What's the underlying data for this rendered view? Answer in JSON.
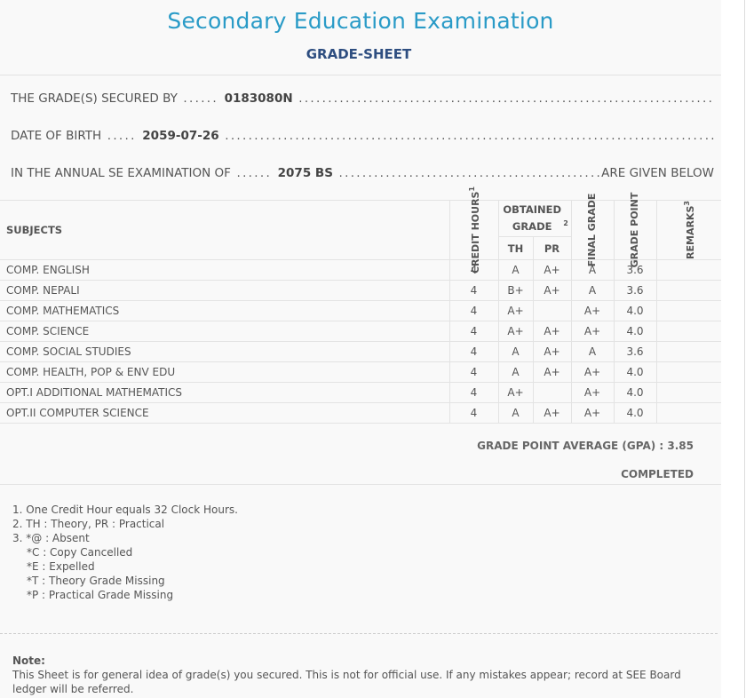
{
  "header": {
    "title": "Secondary Education Examination",
    "subtitle": "GRADE-SHEET"
  },
  "info": {
    "secured_by_label": "THE GRADE(S) SECURED BY",
    "symbol_no": "0183080N",
    "dob_label": "DATE OF BIRTH",
    "dob": "2059-07-26",
    "exam_label": "IN THE ANNUAL SE EXAMINATION OF",
    "exam_year": "2075 BS",
    "exam_suffix": "ARE GIVEN BELOW"
  },
  "table": {
    "headers": {
      "subjects": "SUBJECTS",
      "credit_hours": "CREDIT HOURS",
      "credit_sup": "1",
      "obtained_grade": "OBTAINED GRADE",
      "obtained_sup": "2",
      "th": "TH",
      "pr": "PR",
      "final_grade": "FINAL GRADE",
      "grade_point": "GRADE POINT",
      "remarks": "REMARKS",
      "remarks_sup": "3"
    },
    "rows": [
      {
        "subject": "COMP. ENGLISH",
        "credit": "4",
        "th": "A",
        "pr": "A+",
        "final": "A",
        "gp": "3.6",
        "remarks": ""
      },
      {
        "subject": "COMP. NEPALI",
        "credit": "4",
        "th": "B+",
        "pr": "A+",
        "final": "A",
        "gp": "3.6",
        "remarks": ""
      },
      {
        "subject": "COMP. MATHEMATICS",
        "credit": "4",
        "th": "A+",
        "pr": "",
        "final": "A+",
        "gp": "4.0",
        "remarks": ""
      },
      {
        "subject": "COMP. SCIENCE",
        "credit": "4",
        "th": "A+",
        "pr": "A+",
        "final": "A+",
        "gp": "4.0",
        "remarks": ""
      },
      {
        "subject": "COMP. SOCIAL STUDIES",
        "credit": "4",
        "th": "A",
        "pr": "A+",
        "final": "A",
        "gp": "3.6",
        "remarks": ""
      },
      {
        "subject": "COMP. HEALTH, POP & ENV EDU",
        "credit": "4",
        "th": "A",
        "pr": "A+",
        "final": "A+",
        "gp": "4.0",
        "remarks": ""
      },
      {
        "subject": "OPT.I ADDITIONAL MATHEMATICS",
        "credit": "4",
        "th": "A+",
        "pr": "",
        "final": "A+",
        "gp": "4.0",
        "remarks": ""
      },
      {
        "subject": "OPT.II COMPUTER SCIENCE",
        "credit": "4",
        "th": "A",
        "pr": "A+",
        "final": "A+",
        "gp": "4.0",
        "remarks": ""
      }
    ]
  },
  "summary": {
    "gpa_text": "GRADE POINT AVERAGE (GPA) : 3.85",
    "status": "COMPLETED"
  },
  "footnotes": [
    "1. One Credit Hour equals 32 Clock Hours.",
    "2. TH : Theory, PR : Practical",
    "3. *@ : Absent",
    "*C : Copy Cancelled",
    "*E : Expelled",
    "*T : Theory Grade Missing",
    "*P : Practical Grade Missing"
  ],
  "note": {
    "label": "Note:",
    "text": "This Sheet is for general idea of grade(s) you secured. This is not for official use. If any mistakes appear; record at SEE Board ledger will be referred."
  },
  "colors": {
    "title": "#2a9bc7",
    "subtitle": "#2e4e80",
    "text": "#555555",
    "background": "#f9f9f9"
  }
}
